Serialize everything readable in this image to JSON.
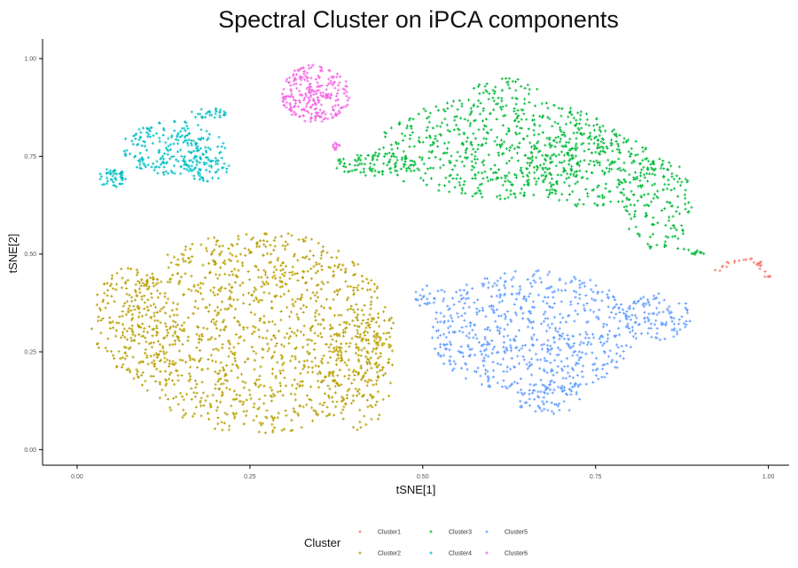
{
  "chart_data": {
    "type": "scatter",
    "title": "Spectral Cluster on iPCA components",
    "xlabel": "tSNE[1]",
    "ylabel": "tSNE[2]",
    "xlim": [
      -0.05,
      1.03
    ],
    "ylim": [
      -0.04,
      1.05
    ],
    "x_ticks": [
      "0.00",
      "0.25",
      "0.50",
      "0.75",
      "1.00"
    ],
    "y_ticks": [
      "0.00",
      "0.25",
      "0.50",
      "0.75",
      "1.00"
    ],
    "grid": false,
    "legend_position": "bottom",
    "legend_title": "Cluster",
    "marker": "plus",
    "series": [
      {
        "name": "Cluster1",
        "color": "#F8766D",
        "regions": [
          {
            "shape": "arc",
            "points": [
              [
                0.92,
                0.455
              ],
              [
                0.935,
                0.47
              ],
              [
                0.95,
                0.48
              ],
              [
                0.965,
                0.488
              ],
              [
                0.978,
                0.485
              ],
              [
                0.985,
                0.475
              ],
              [
                0.99,
                0.465
              ],
              [
                0.995,
                0.455
              ],
              [
                0.998,
                0.445
              ],
              [
                1.0,
                0.437
              ]
            ],
            "n": 30,
            "jitter": 0.005
          }
        ]
      },
      {
        "name": "Cluster2",
        "color": "#B79F00",
        "regions": [
          {
            "shape": "ellipse",
            "cx": 0.26,
            "cy": 0.3,
            "rx": 0.2,
            "ry": 0.26,
            "n": 1200
          },
          {
            "shape": "ellipse",
            "cx": 0.08,
            "cy": 0.33,
            "rx": 0.06,
            "ry": 0.14,
            "n": 160
          },
          {
            "shape": "ellipse",
            "cx": 0.41,
            "cy": 0.2,
            "rx": 0.05,
            "ry": 0.15,
            "n": 150
          }
        ]
      },
      {
        "name": "Cluster3",
        "color": "#00BA38",
        "regions": [
          {
            "shape": "ellipse",
            "cx": 0.61,
            "cy": 0.77,
            "rx": 0.18,
            "ry": 0.13,
            "n": 600
          },
          {
            "shape": "ellipse",
            "cx": 0.74,
            "cy": 0.72,
            "rx": 0.1,
            "ry": 0.1,
            "n": 220
          },
          {
            "shape": "ellipse",
            "cx": 0.84,
            "cy": 0.63,
            "rx": 0.05,
            "ry": 0.12,
            "n": 150
          },
          {
            "shape": "ellipse",
            "cx": 0.43,
            "cy": 0.73,
            "rx": 0.06,
            "ry": 0.03,
            "n": 90
          },
          {
            "shape": "ellipse",
            "cx": 0.62,
            "cy": 0.92,
            "rx": 0.05,
            "ry": 0.03,
            "n": 40
          },
          {
            "shape": "arc",
            "points": [
              [
                0.84,
                0.53
              ],
              [
                0.87,
                0.515
              ],
              [
                0.89,
                0.505
              ],
              [
                0.91,
                0.5
              ]
            ],
            "n": 18,
            "jitter": 0.005
          }
        ]
      },
      {
        "name": "Cluster4",
        "color": "#00BFC4",
        "regions": [
          {
            "shape": "ellipse",
            "cx": 0.14,
            "cy": 0.77,
            "rx": 0.075,
            "ry": 0.07,
            "n": 230
          },
          {
            "shape": "ellipse",
            "cx": 0.185,
            "cy": 0.72,
            "rx": 0.035,
            "ry": 0.035,
            "n": 50
          },
          {
            "shape": "ellipse",
            "cx": 0.05,
            "cy": 0.695,
            "rx": 0.02,
            "ry": 0.025,
            "n": 50
          },
          {
            "shape": "ellipse",
            "cx": 0.19,
            "cy": 0.86,
            "rx": 0.025,
            "ry": 0.015,
            "n": 30
          }
        ]
      },
      {
        "name": "Cluster5",
        "color": "#619CFF",
        "regions": [
          {
            "shape": "ellipse",
            "cx": 0.66,
            "cy": 0.3,
            "rx": 0.15,
            "ry": 0.16,
            "n": 650
          },
          {
            "shape": "ellipse",
            "cx": 0.84,
            "cy": 0.34,
            "rx": 0.05,
            "ry": 0.06,
            "n": 110
          },
          {
            "shape": "ellipse",
            "cx": 0.68,
            "cy": 0.13,
            "rx": 0.05,
            "ry": 0.04,
            "n": 60
          },
          {
            "shape": "ellipse",
            "cx": 0.51,
            "cy": 0.39,
            "rx": 0.025,
            "ry": 0.03,
            "n": 25
          }
        ]
      },
      {
        "name": "Cluster6",
        "color": "#F564E3",
        "regions": [
          {
            "shape": "ellipse",
            "cx": 0.345,
            "cy": 0.91,
            "rx": 0.05,
            "ry": 0.075,
            "n": 260
          },
          {
            "shape": "ellipse",
            "cx": 0.375,
            "cy": 0.775,
            "rx": 0.006,
            "ry": 0.01,
            "n": 12
          }
        ]
      }
    ]
  }
}
